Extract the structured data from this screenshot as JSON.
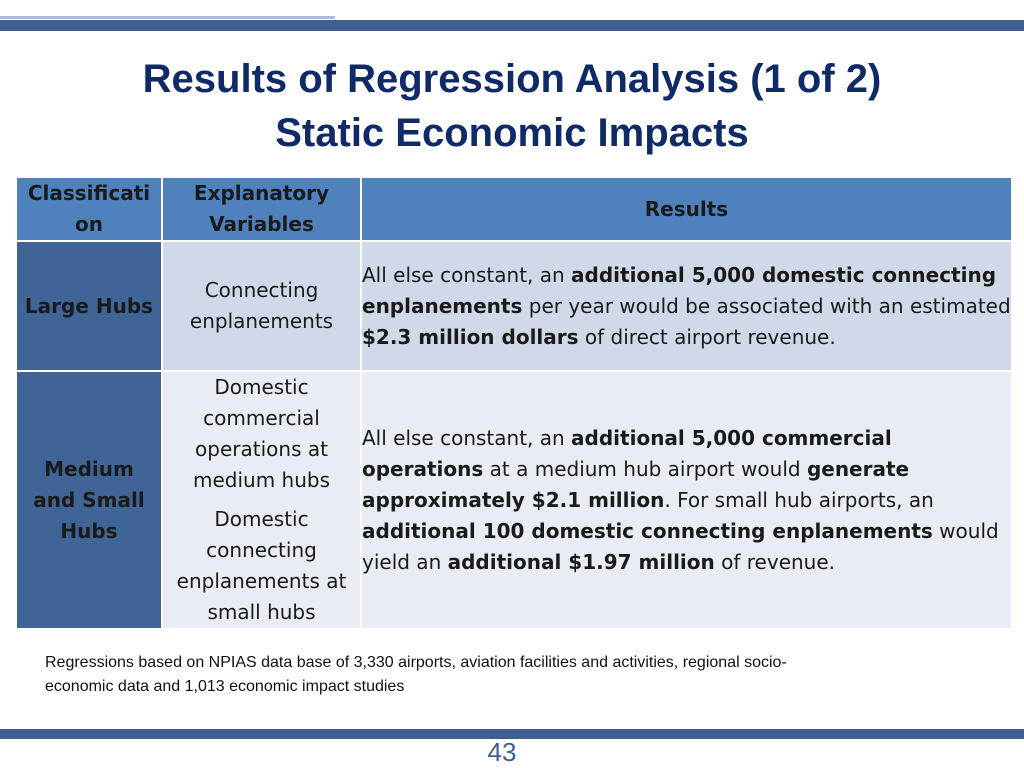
{
  "title": {
    "line1": "Results of Regression Analysis (1 of 2)",
    "line2": "Static Economic Impacts"
  },
  "table": {
    "headers": {
      "classification": "Classificati on",
      "variables": "Explanatory Variables",
      "results": "Results"
    },
    "rows": [
      {
        "classification": "Large Hubs",
        "variables": [
          "Connecting enplanements"
        ],
        "result": [
          {
            "t": "All else constant, an ",
            "b": false
          },
          {
            "t": "additional 5,000 domestic connecting enplanements",
            "b": true
          },
          {
            "t": " per year would be associated with an estimated ",
            "b": false
          },
          {
            "t": "$2.3 million dollars",
            "b": true
          },
          {
            "t": " of direct airport revenue.",
            "b": false
          }
        ]
      },
      {
        "classification": "Medium and Small Hubs",
        "variables": [
          "Domestic commercial operations at medium hubs",
          "Domestic connecting enplanements at small hubs"
        ],
        "result": [
          {
            "t": "All else constant, an ",
            "b": false
          },
          {
            "t": "additional 5,000 commercial operations",
            "b": true
          },
          {
            "t": " at a medium hub airport would ",
            "b": false
          },
          {
            "t": "generate approximately $2.1 million",
            "b": true
          },
          {
            "t": ". For small hub airports, an ",
            "b": false
          },
          {
            "t": "additional 100 domestic connecting enplanements",
            "b": true
          },
          {
            "t": " would yield an ",
            "b": false
          },
          {
            "t": "additional $1.97 million",
            "b": true
          },
          {
            "t": " of revenue.",
            "b": false
          }
        ]
      }
    ]
  },
  "note": "Regressions based on NPIAS data base of 3,330 airports, aviation facilities and activities, regional socio-economic data and  1,013 economic impact studies",
  "page_number": "43",
  "colors": {
    "title": "#0f2a66",
    "header_bg": "#4f81bd",
    "classification_bg": "#3f6496",
    "row1_bg": "#d0d9e8",
    "row2_bg": "#e8ecf3",
    "bar": "#3f5f8e"
  }
}
